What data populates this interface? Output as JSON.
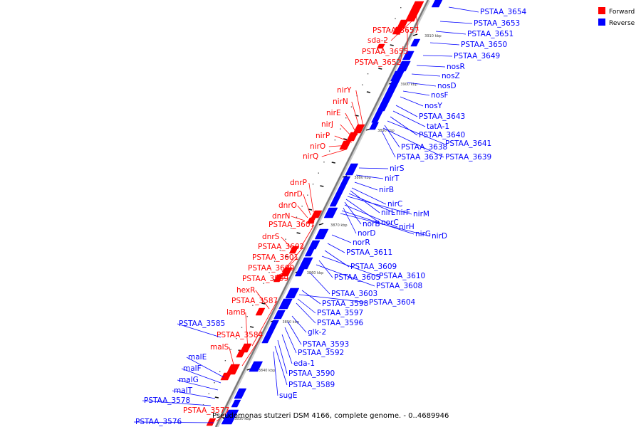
{
  "caption": "Pseudomonas stutzeri DSM 4166, complete genome. - 0..4689946",
  "legend": [
    {
      "label": "Forward",
      "color": "#ff0000"
    },
    {
      "label": "Reverse",
      "color": "#0000ff"
    }
  ],
  "colors": {
    "forward": "#ff0000",
    "reverse": "#0000ff",
    "backbone": "#888888"
  },
  "ticks": [
    "3910 kbp",
    "3900 kbp",
    "3890 kbp",
    "3880 kbp",
    "3870 kbp",
    "3860 kbp",
    "3850 kbp",
    "3840 kbp",
    "3830 kbp"
  ],
  "forward_genes": [
    "PSTAA_3657",
    "sda-2",
    "PSTAA_3655",
    "PSTAA_3652",
    "nirY",
    "nirN",
    "nirE",
    "nirJ",
    "nirP",
    "nirO",
    "nirQ",
    "dnrP",
    "dnrD",
    "dnrO",
    "dnrN",
    "PSTAA_3607",
    "dnrS",
    "PSTAA_3602",
    "PSTAA_3601",
    "PSTAA_3600",
    "PSTAA_3599",
    "hexR",
    "PSTAA_3587",
    "lamB",
    "PSTAA_3584",
    "malS",
    "PSTAA_3577"
  ],
  "reverse_genes": [
    "PSTAA_3654",
    "PSTAA_3653",
    "PSTAA_3651",
    "PSTAA_3650",
    "PSTAA_3649",
    "nosR",
    "nosZ",
    "nosD",
    "nosF",
    "nosY",
    "PSTAA_3643",
    "tatA-1",
    "PSTAA_3640",
    "PSTAA_3641",
    "PSTAA_3638",
    "PSTAA_3639",
    "PSTAA_3637",
    "nirS",
    "nirT",
    "nirB",
    "nirC",
    "nirL",
    "nirF",
    "nirM",
    "norC",
    "norB",
    "nirH",
    "norD",
    "nirG",
    "nirD",
    "norR",
    "PSTAA_3611",
    "PSTAA_3609",
    "PSTAA_3610",
    "PSTAA_3605",
    "PSTAA_3608",
    "PSTAA_3603",
    "PSTAA_3598",
    "PSTAA_3604",
    "PSTAA_3597",
    "PSTAA_3596",
    "glk-2",
    "PSTAA_3593",
    "PSTAA_3592",
    "eda-1",
    "PSTAA_3590",
    "PSTAA_3589",
    "sugE",
    "PSTAA_3585",
    "malE",
    "malF",
    "malG",
    "malT",
    "PSTAA_3578",
    "PSTAA_3576"
  ]
}
